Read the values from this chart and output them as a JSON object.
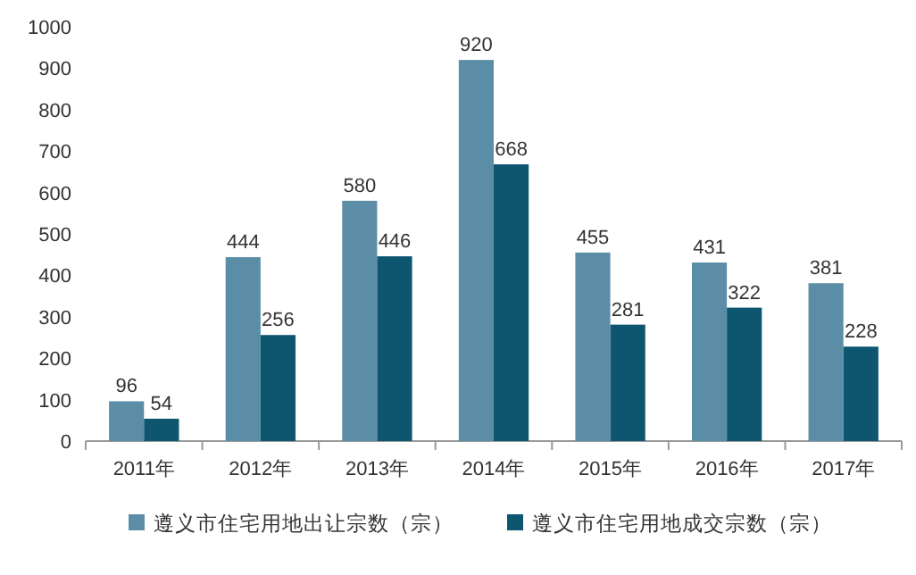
{
  "chart_data": {
    "type": "bar",
    "categories": [
      "2011年",
      "2012年",
      "2013年",
      "2014年",
      "2015年",
      "2016年",
      "2017年"
    ],
    "series": [
      {
        "name": "遵义市住宅用地出让宗数（宗）",
        "color": "#5b8ea6",
        "values": [
          96,
          444,
          580,
          920,
          455,
          431,
          381
        ]
      },
      {
        "name": "遵义市住宅用地成交宗数（宗）",
        "color": "#0e5670",
        "values": [
          54,
          256,
          446,
          668,
          281,
          322,
          228
        ]
      }
    ],
    "ylim": [
      0,
      1000
    ],
    "yticks": [
      0,
      100,
      200,
      300,
      400,
      500,
      600,
      700,
      800,
      900,
      1000
    ],
    "data_labels": true,
    "grid": false,
    "legend": "bottom"
  }
}
